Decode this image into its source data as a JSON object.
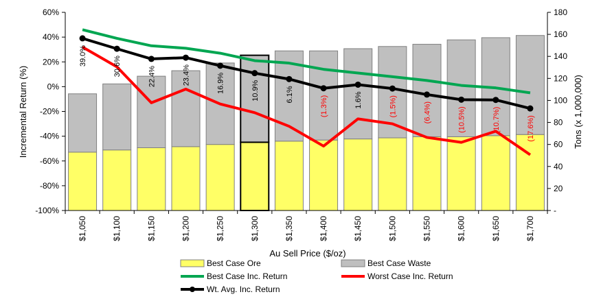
{
  "chart_data": {
    "type": "bar",
    "categories": [
      "$1,050",
      "$1,100",
      "$1,150",
      "$1,200",
      "$1,250",
      "$1,300",
      "$1,350",
      "$1,400",
      "$1,450",
      "$1,500",
      "$1,550",
      "$1,600",
      "$1,650",
      "$1,700"
    ],
    "xlabel": "Au Sell Price ($/oz)",
    "ylabel": "Incremental Return (%)",
    "y2label": "Tons (x 1,000,000)",
    "ylim": [
      -100,
      60
    ],
    "y2lim": [
      0,
      180
    ],
    "y_ticks": [
      "60%",
      "40%",
      "20%",
      "0%",
      "-20%",
      "-40%",
      "-60%",
      "-80%",
      "-100%"
    ],
    "y2_ticks": [
      "180",
      "160",
      "140",
      "120",
      "100",
      "80",
      "60",
      "40",
      "20",
      "-"
    ],
    "highlight_category": "$1,300",
    "bar_series": [
      {
        "name": "Best Case Ore",
        "axis": "right",
        "color": "#ffff66",
        "values": [
          53,
          55,
          57,
          58,
          60,
          62,
          63,
          64,
          65,
          66,
          67,
          67,
          68,
          69
        ]
      },
      {
        "name": "Best Case Waste",
        "axis": "right",
        "color": "#bfbfbf",
        "values": [
          53,
          60,
          65,
          69,
          74,
          79,
          82,
          81,
          82,
          83,
          84,
          88,
          89,
          90
        ]
      }
    ],
    "line_series": [
      {
        "name": "Best Case Inc. Return",
        "axis": "left",
        "color": "#00a651",
        "values": [
          46,
          39,
          33,
          31,
          27,
          21,
          19,
          14,
          11,
          8,
          5,
          1,
          -1,
          -5
        ]
      },
      {
        "name": "Worst Case Inc. Return",
        "axis": "left",
        "color": "#ff0000",
        "values": [
          32,
          16,
          -13,
          -2,
          -14,
          -21,
          -32,
          -48,
          -26,
          -30,
          -41,
          -45,
          -36,
          -55
        ]
      },
      {
        "name": "Wt. Avg. Inc. Return",
        "axis": "left",
        "color": "#000000",
        "values": [
          39.0,
          30.6,
          22.4,
          23.4,
          16.9,
          10.9,
          6.1,
          -1.3,
          1.6,
          -1.5,
          -6.4,
          -10.5,
          -10.7,
          -17.6
        ]
      }
    ],
    "data_labels": [
      "39.0%",
      "30.6%",
      "22.4%",
      "23.4%",
      "16.9%",
      "10.9%",
      "6.1%",
      "(1.3%)",
      "1.6%",
      "(1.5%)",
      "(6.4%)",
      "(10.5%)",
      "(10.7%)",
      "(17.6%)"
    ],
    "legend": {
      "placement": "bottom",
      "items": [
        "Best Case Ore",
        "Best Case Waste",
        "Best Case Inc. Return",
        "Worst Case Inc. Return",
        "Wt. Avg. Inc. Return"
      ]
    },
    "grid": false
  }
}
